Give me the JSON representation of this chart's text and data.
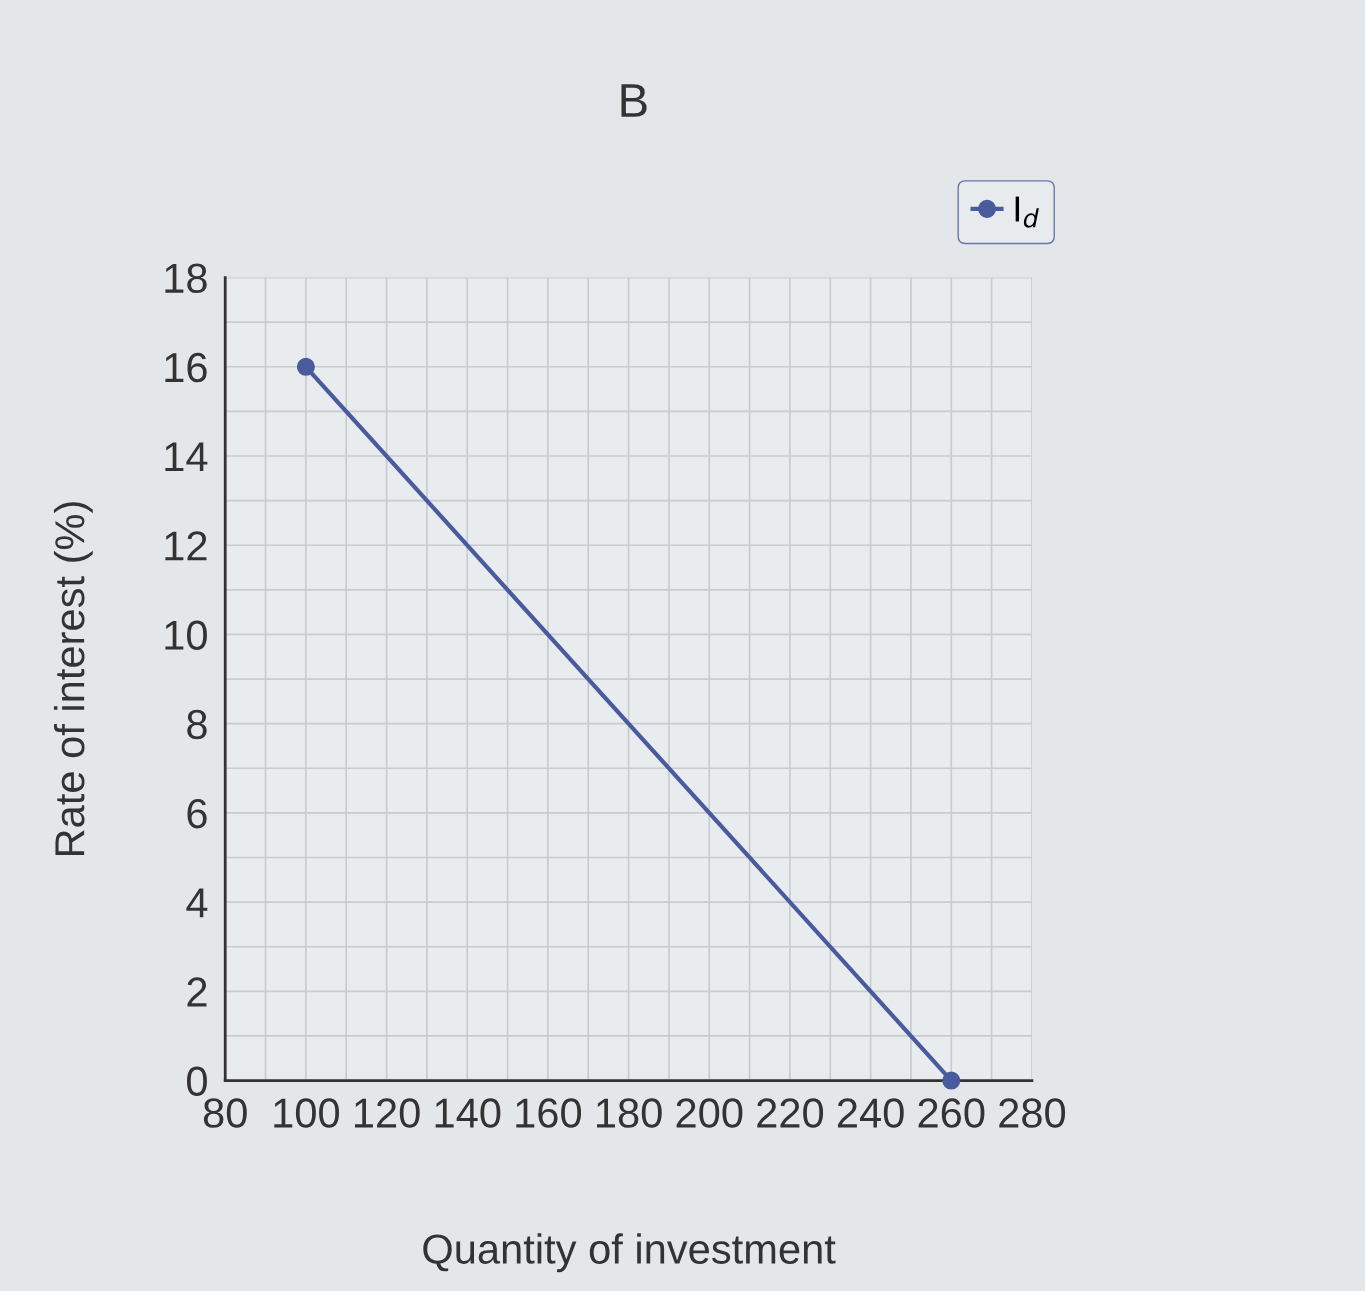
{
  "chart_data": {
    "type": "line",
    "title": "B",
    "xlabel": "Quantity of investment",
    "ylabel": "Rate of interest (%)",
    "x": [
      100,
      260
    ],
    "series": [
      {
        "name": "I$_{d}$",
        "color": "#4a5a9e",
        "values": [
          16,
          0
        ]
      }
    ],
    "xlim": [
      80,
      280
    ],
    "xticks": [
      80,
      {
        "value": 90,
        "label": null
      },
      100,
      {
        "value": 110,
        "label": null
      },
      120,
      {
        "value": 130,
        "label": null
      },
      140,
      {
        "value": 150,
        "label": null
      },
      160,
      {
        "value": 170,
        "label": null
      },
      180,
      {
        "value": 190,
        "label": null
      },
      200,
      {
        "value": 210,
        "label": null
      },
      220,
      {
        "value": 230,
        "label": null
      },
      240,
      {
        "value": 250,
        "label": null
      },
      260,
      {
        "value": 270,
        "label": null
      },
      280
    ],
    "ylim": [
      0,
      18
    ],
    "yticks": [
      0,
      {
        "value": 1,
        "label": null
      },
      2,
      {
        "value": 3,
        "label": null
      },
      4,
      {
        "value": 5,
        "label": null
      },
      6,
      {
        "value": 7,
        "label": null
      },
      8,
      {
        "value": 9,
        "label": null
      },
      10,
      {
        "value": 11,
        "label": null
      },
      12,
      {
        "value": 13,
        "label": null
      },
      14,
      {
        "value": 15,
        "label": null
      },
      16,
      {
        "value": 17,
        "label": null
      },
      18
    ],
    "grid": true,
    "legend": "top right",
    "marker": "circle",
    "line_style": "solid"
  }
}
